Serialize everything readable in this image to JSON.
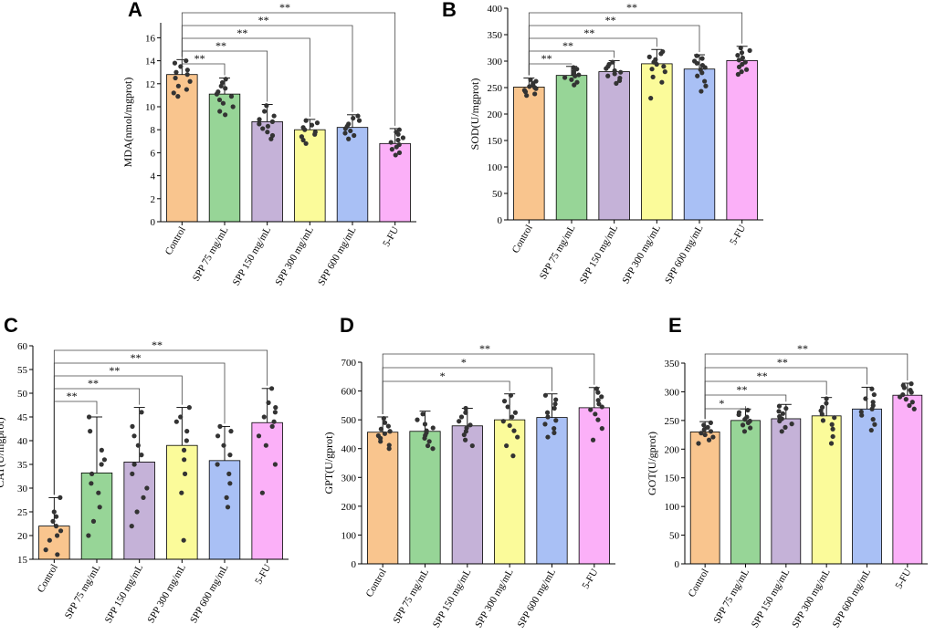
{
  "categories": [
    "Control",
    "SPP 75 mg/mL",
    "SPP 150 mg/mL",
    "SPP 300 mg/mL",
    "SPP 600 mg/mL",
    "5-FU"
  ],
  "colors": {
    "bars": [
      "#f9c58e",
      "#97d597",
      "#c5b2d8",
      "#fbfb9a",
      "#a9c0f5",
      "#fbb0f8"
    ],
    "axis": "#000000",
    "points": "#333333"
  },
  "chart_data": [
    {
      "panel": "A",
      "type": "bar",
      "ylabel": "MDA(nmol/mgprot)",
      "ylim": [
        0,
        17.3
      ],
      "yticks": [
        0,
        2,
        4,
        6,
        8,
        10,
        12,
        14,
        16
      ],
      "values": [
        12.8,
        11.1,
        8.7,
        8.0,
        8.2,
        6.8
      ],
      "error_top": [
        14.1,
        12.5,
        10.2,
        8.9,
        9.3,
        8.1
      ],
      "points": [
        [
          14.0,
          13.8,
          13.5,
          13.2,
          13.0,
          12.8,
          12.5,
          12.2,
          11.8,
          11.5,
          11.2,
          10.9
        ],
        [
          12.4,
          12.1,
          11.8,
          11.6,
          11.3,
          11.1,
          10.9,
          10.6,
          10.3,
          10.0,
          9.6,
          9.3
        ],
        [
          10.1,
          9.6,
          9.2,
          8.9,
          8.7,
          8.5,
          8.3,
          8.1,
          7.8,
          7.5,
          7.2
        ],
        [
          8.8,
          8.6,
          8.4,
          8.2,
          8.0,
          7.8,
          7.6,
          7.4,
          7.1,
          6.8
        ],
        [
          9.2,
          9.0,
          8.8,
          8.5,
          8.3,
          8.1,
          7.9,
          7.7,
          7.5,
          7.2
        ],
        [
          8.0,
          7.8,
          7.6,
          7.3,
          7.1,
          6.9,
          6.7,
          6.5,
          6.3,
          6.0,
          5.8
        ]
      ],
      "comparisons": [
        {
          "to": 1,
          "label": "**"
        },
        {
          "to": 2,
          "label": "**"
        },
        {
          "to": 3,
          "label": "**"
        },
        {
          "to": 4,
          "label": "**"
        },
        {
          "to": 5,
          "label": "**"
        }
      ]
    },
    {
      "panel": "B",
      "type": "bar",
      "ylabel": "SOD(U/mgprot)",
      "ylim": [
        0,
        400
      ],
      "yticks": [
        0,
        50,
        100,
        150,
        200,
        250,
        300,
        350,
        400
      ],
      "values": [
        251,
        273,
        280,
        295,
        285,
        301
      ],
      "error_top": [
        268,
        290,
        301,
        322,
        312,
        328
      ],
      "points": [
        [
          265,
          262,
          258,
          255,
          252,
          250,
          248,
          245,
          242,
          238,
          235
        ],
        [
          288,
          285,
          280,
          277,
          274,
          272,
          269,
          265,
          260,
          255
        ],
        [
          298,
          294,
          290,
          286,
          282,
          279,
          276,
          272,
          268,
          263,
          258
        ],
        [
          318,
          314,
          308,
          303,
          298,
          294,
          290,
          285,
          280,
          270,
          260,
          230
        ],
        [
          310,
          305,
          300,
          296,
          292,
          288,
          284,
          278,
          272,
          262,
          253,
          243
        ],
        [
          325,
          320,
          316,
          311,
          306,
          302,
          298,
          294,
          289,
          284,
          280,
          275
        ]
      ],
      "comparisons": [
        {
          "to": 1,
          "label": "**"
        },
        {
          "to": 2,
          "label": "**"
        },
        {
          "to": 3,
          "label": "**"
        },
        {
          "to": 4,
          "label": "**"
        },
        {
          "to": 5,
          "label": "**"
        }
      ]
    },
    {
      "panel": "C",
      "type": "bar",
      "ylabel": "CAT(U/mgprot)",
      "ylim": [
        15,
        60
      ],
      "yticks": [
        15,
        20,
        25,
        30,
        35,
        40,
        45,
        50,
        55,
        60
      ],
      "values": [
        22.0,
        33.2,
        35.5,
        39.0,
        35.8,
        43.8
      ],
      "error_top": [
        28.0,
        45.0,
        47.0,
        47.0,
        43.0,
        51.0
      ],
      "points": [
        [
          28.0,
          25.0,
          24.0,
          23.0,
          22.0,
          21.0,
          20.0,
          19.0,
          17.0,
          16.0
        ],
        [
          45.0,
          42.0,
          38.0,
          36.0,
          35.0,
          33.0,
          31.0,
          29.0,
          26.0,
          23.0,
          20.0
        ],
        [
          46.0,
          43.0,
          41.0,
          39.0,
          37.0,
          35.0,
          33.0,
          30.0,
          28.0,
          25.0,
          22.0
        ],
        [
          47.0,
          45.0,
          44.0,
          42.0,
          40.0,
          38.0,
          36.0,
          33.0,
          29.0,
          19.0
        ],
        [
          43.0,
          42.0,
          41.0,
          39.0,
          37.0,
          35.0,
          33.0,
          31.0,
          28.0,
          26.0
        ],
        [
          51.0,
          48.0,
          47.0,
          46.0,
          45.0,
          44.0,
          43.0,
          41.0,
          39.0,
          35.0,
          29.0
        ]
      ],
      "comparisons": [
        {
          "to": 1,
          "label": "**"
        },
        {
          "to": 2,
          "label": "**"
        },
        {
          "to": 3,
          "label": "**"
        },
        {
          "to": 4,
          "label": "**"
        },
        {
          "to": 5,
          "label": "**"
        }
      ]
    },
    {
      "panel": "D",
      "type": "bar",
      "ylabel": "GPT(U/gprot)",
      "ylim": [
        0,
        700
      ],
      "yticks": [
        0,
        100,
        200,
        300,
        400,
        500,
        600,
        700
      ],
      "values": [
        457,
        460,
        479,
        500,
        508,
        542
      ],
      "error_top": [
        510,
        530,
        540,
        590,
        590,
        612
      ],
      "points": [
        [
          505,
          490,
          478,
          468,
          460,
          452,
          445,
          436,
          425,
          412,
          400
        ],
        [
          520,
          500,
          485,
          472,
          462,
          455,
          446,
          436,
          425,
          410,
          400
        ],
        [
          540,
          525,
          510,
          495,
          482,
          472,
          460,
          448,
          430,
          410
        ],
        [
          585,
          565,
          545,
          525,
          510,
          495,
          480,
          462,
          440,
          410,
          375
        ],
        [
          585,
          570,
          555,
          540,
          525,
          510,
          498,
          485,
          470,
          455,
          440
        ],
        [
          608,
          595,
          580,
          568,
          555,
          545,
          535,
          520,
          500,
          470,
          430
        ]
      ],
      "comparisons": [
        {
          "to": 3,
          "label": "*"
        },
        {
          "to": 4,
          "label": "*"
        },
        {
          "to": 5,
          "label": "**"
        }
      ]
    },
    {
      "panel": "E",
      "type": "bar",
      "ylabel": "GOT(U/gprot)",
      "ylim": [
        0,
        350
      ],
      "yticks": [
        0,
        50,
        100,
        150,
        200,
        250,
        300,
        350
      ],
      "values": [
        230,
        250,
        253,
        258,
        270,
        294
      ],
      "error_top": [
        248,
        270,
        278,
        290,
        308,
        315
      ],
      "points": [
        [
          246,
          242,
          238,
          234,
          231,
          228,
          225,
          221,
          216,
          210
        ],
        [
          268,
          264,
          260,
          256,
          252,
          249,
          246,
          242,
          237,
          231
        ],
        [
          275,
          271,
          266,
          262,
          257,
          253,
          249,
          244,
          238,
          231
        ],
        [
          288,
          280,
          273,
          267,
          261,
          255,
          250,
          243,
          235,
          222,
          210
        ],
        [
          305,
          295,
          288,
          282,
          276,
          270,
          265,
          259,
          252,
          243,
          233
        ],
        [
          314,
          311,
          307,
          303,
          299,
          295,
          291,
          287,
          282,
          276,
          270
        ]
      ],
      "comparisons": [
        {
          "to": 1,
          "label": "*"
        },
        {
          "to": 2,
          "label": "**"
        },
        {
          "to": 3,
          "label": "**"
        },
        {
          "to": 4,
          "label": "**"
        },
        {
          "to": 5,
          "label": "**"
        }
      ]
    }
  ]
}
